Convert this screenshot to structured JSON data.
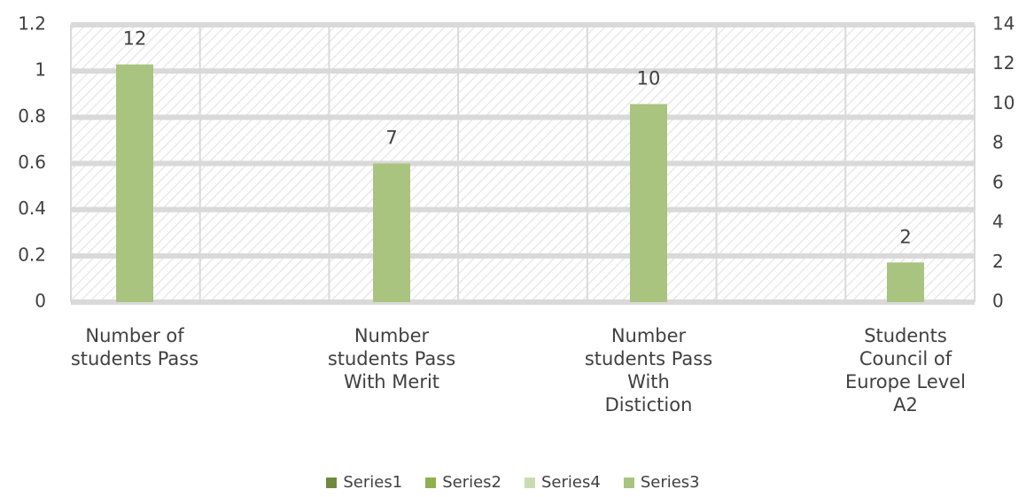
{
  "chart_data": {
    "type": "bar",
    "categories": [
      "Number of students Pass",
      "Number students Pass With Merit",
      "Number students Pass With Distiction",
      "Students Council of Europe Level A2"
    ],
    "series": [
      {
        "name": "Series1",
        "color": "#70893e",
        "values": [
          null,
          null,
          null,
          null
        ]
      },
      {
        "name": "Series2",
        "color": "#8db050",
        "values": [
          null,
          null,
          null,
          null
        ]
      },
      {
        "name": "Series4",
        "color": "#c9dcb0",
        "values": [
          null,
          null,
          null,
          null
        ]
      },
      {
        "name": "Series3",
        "color": "#a9c47f",
        "axis": "y2",
        "values": [
          12,
          7,
          10,
          2
        ]
      }
    ],
    "ylim": [
      0,
      1.2
    ],
    "yticks": [
      0,
      0.2,
      0.4,
      0.6,
      0.8,
      1,
      1.2
    ],
    "y2lim": [
      0,
      14
    ],
    "y2ticks": [
      0,
      2,
      4,
      6,
      8,
      10,
      12,
      14
    ],
    "grid": true
  }
}
